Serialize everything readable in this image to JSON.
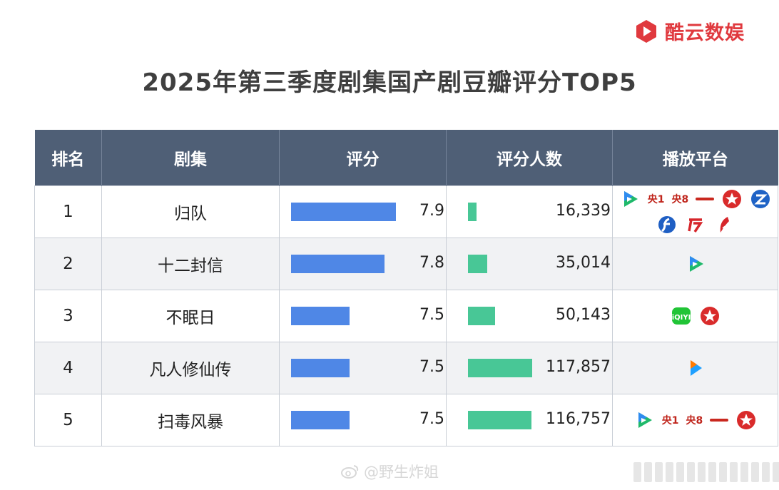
{
  "brand": {
    "name": "酷云数娱",
    "color": "#e0393e"
  },
  "title": "2025年第三季度剧集国产剧豆瓣评分TOP5",
  "table": {
    "headers": [
      "排名",
      "剧集",
      "评分",
      "评分人数",
      "播放平台"
    ],
    "rows": [
      {
        "rank": "1",
        "name": "归队",
        "score": "7.9",
        "raters": "16,339",
        "platforms": [
          "tencent-video-icon",
          "央1",
          "央8",
          "cctv-icon",
          "dragon-tv-icon",
          "zhejiang-tv-icon",
          "jiangsu-tv-icon",
          "guangdong-tv-icon",
          "shenzhen-tv-icon"
        ]
      },
      {
        "rank": "2",
        "name": "十二封信",
        "score": "7.8",
        "raters": "35,014",
        "platforms": [
          "tencent-video-icon"
        ]
      },
      {
        "rank": "3",
        "name": "不眠日",
        "score": "7.5",
        "raters": "50,143",
        "platforms": [
          "iqiyi-icon",
          "dragon-tv-icon"
        ]
      },
      {
        "rank": "4",
        "name": "凡人修仙传",
        "score": "7.5",
        "raters": "117,857",
        "platforms": [
          "youku-icon"
        ]
      },
      {
        "rank": "5",
        "name": "扫毒风暴",
        "score": "7.5",
        "raters": "116,757",
        "platforms": [
          "tencent-video-icon",
          "央1",
          "央8",
          "cctv-icon",
          "dragon-tv-icon"
        ]
      }
    ]
  },
  "chart_data": {
    "type": "table",
    "categories": [
      "归队",
      "十二封信",
      "不眠日",
      "凡人修仙传",
      "扫毒风暴"
    ],
    "series": [
      {
        "name": "评分",
        "values": [
          7.9,
          7.8,
          7.5,
          7.5,
          7.5
        ],
        "color": "#4f87e6"
      },
      {
        "name": "评分人数",
        "values": [
          16339,
          35014,
          50143,
          117857,
          116757
        ],
        "color": "#48c796"
      }
    ]
  },
  "watermark": "@野生炸姐"
}
